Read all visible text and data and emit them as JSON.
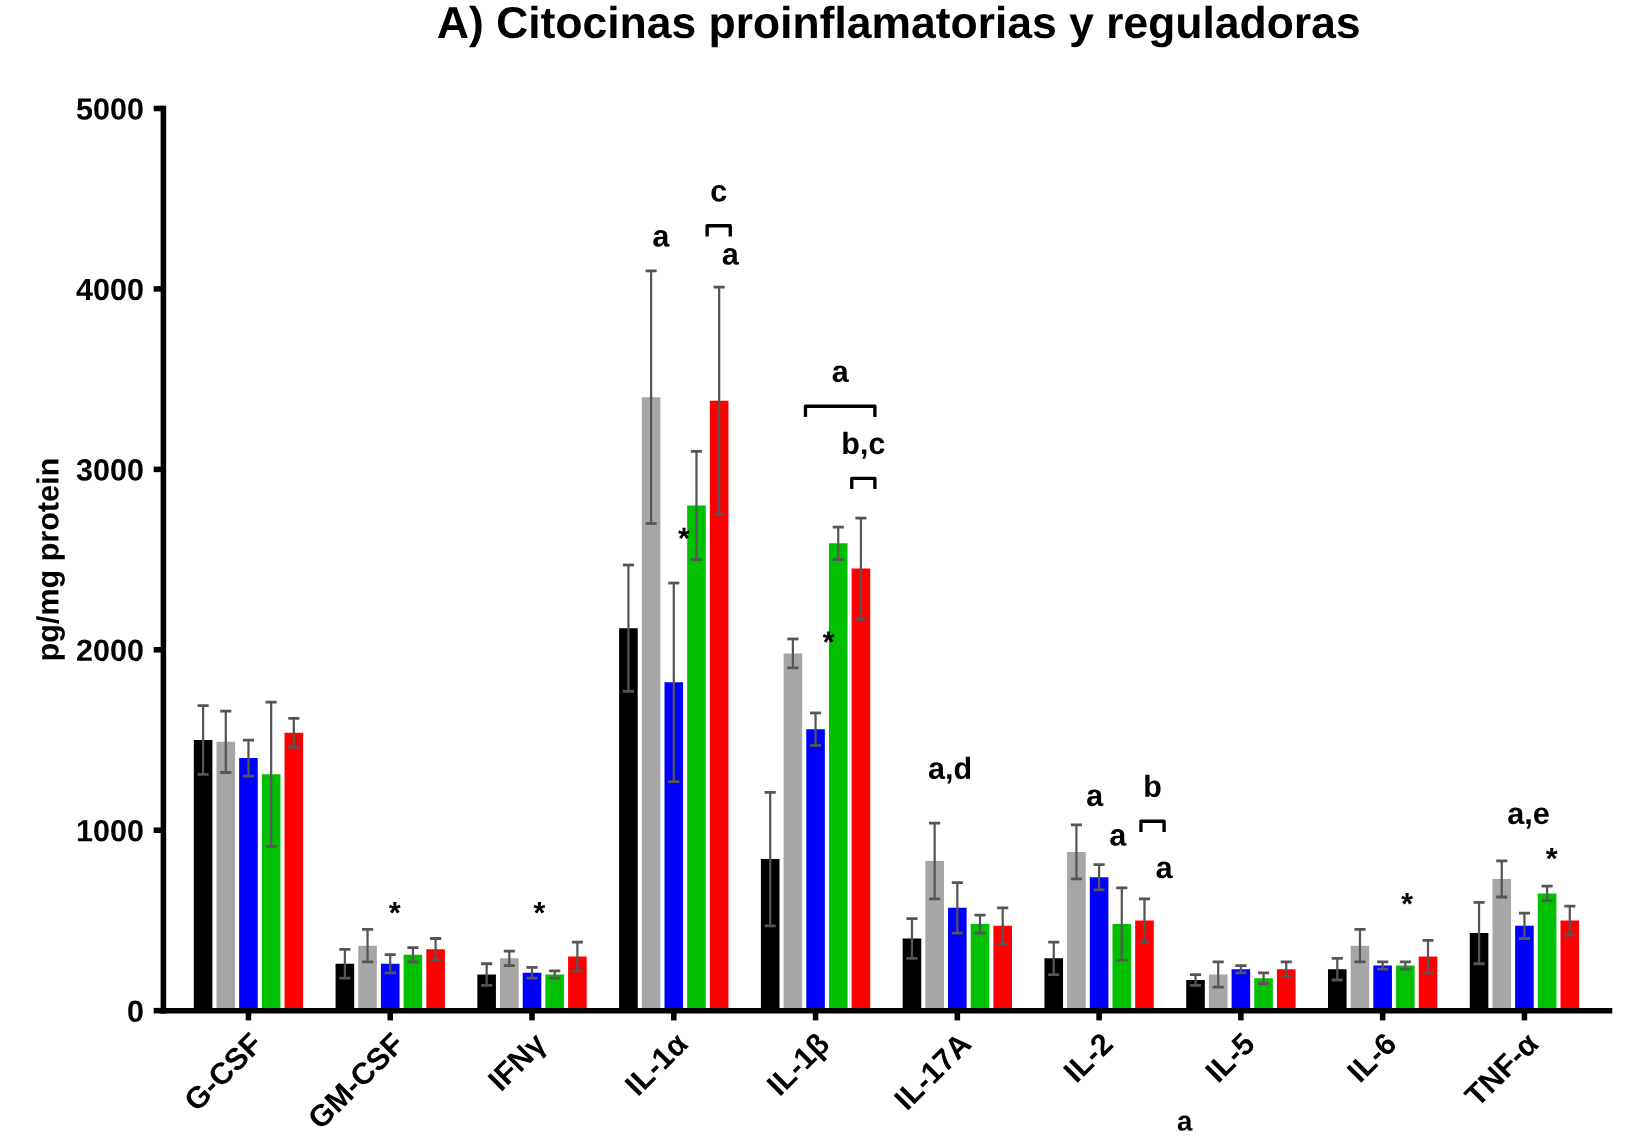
{
  "chart_data": {
    "type": "bar",
    "title": "A) Citocinas proinflamatorias y reguladoras",
    "ylabel": "pg/mg protein",
    "categories": [
      "G-CSF",
      "GM-CSF",
      "IFNγ",
      "IL-1α",
      "IL-1β",
      "IL-17A",
      "IL-2",
      "IL-5",
      "IL-6",
      "TNF-α"
    ],
    "series": [
      {
        "color": "#000000",
        "values": [
          1500,
          260,
          200,
          2120,
          840,
          400,
          290,
          170,
          230,
          430
        ],
        "errors": [
          190,
          80,
          60,
          350,
          370,
          110,
          90,
          30,
          60,
          170
        ]
      },
      {
        "color": "#a6a6a6",
        "values": [
          1490,
          360,
          290,
          3400,
          1980,
          830,
          880,
          200,
          360,
          730
        ],
        "errors": [
          170,
          90,
          40,
          700,
          80,
          210,
          150,
          70,
          90,
          100
        ]
      },
      {
        "color": "#0000ff",
        "values": [
          1400,
          260,
          210,
          1820,
          1560,
          570,
          740,
          230,
          250,
          470
        ],
        "errors": [
          100,
          50,
          30,
          550,
          90,
          140,
          70,
          20,
          20,
          70
        ]
      },
      {
        "color": "#00c000",
        "values": [
          1310,
          310,
          200,
          2800,
          2590,
          480,
          480,
          180,
          250,
          650
        ],
        "errors": [
          400,
          40,
          20,
          300,
          90,
          50,
          200,
          30,
          20,
          40
        ]
      },
      {
        "color": "#ff0000",
        "values": [
          1540,
          340,
          300,
          3380,
          2450,
          470,
          500,
          230,
          300,
          500
        ],
        "errors": [
          80,
          60,
          80,
          630,
          280,
          100,
          120,
          40,
          90,
          80
        ]
      }
    ],
    "ylim": [
      0,
      5000
    ],
    "yticks": [
      0,
      1000,
      2000,
      3000,
      4000,
      5000
    ],
    "grid": false,
    "legend": false,
    "annotations": [
      "*",
      "*",
      "a",
      "*",
      "c",
      "a",
      "a",
      "*",
      "b,c",
      "a,d",
      "a",
      "a",
      "b",
      "a",
      "*",
      "a,e",
      "*",
      "a"
    ]
  }
}
